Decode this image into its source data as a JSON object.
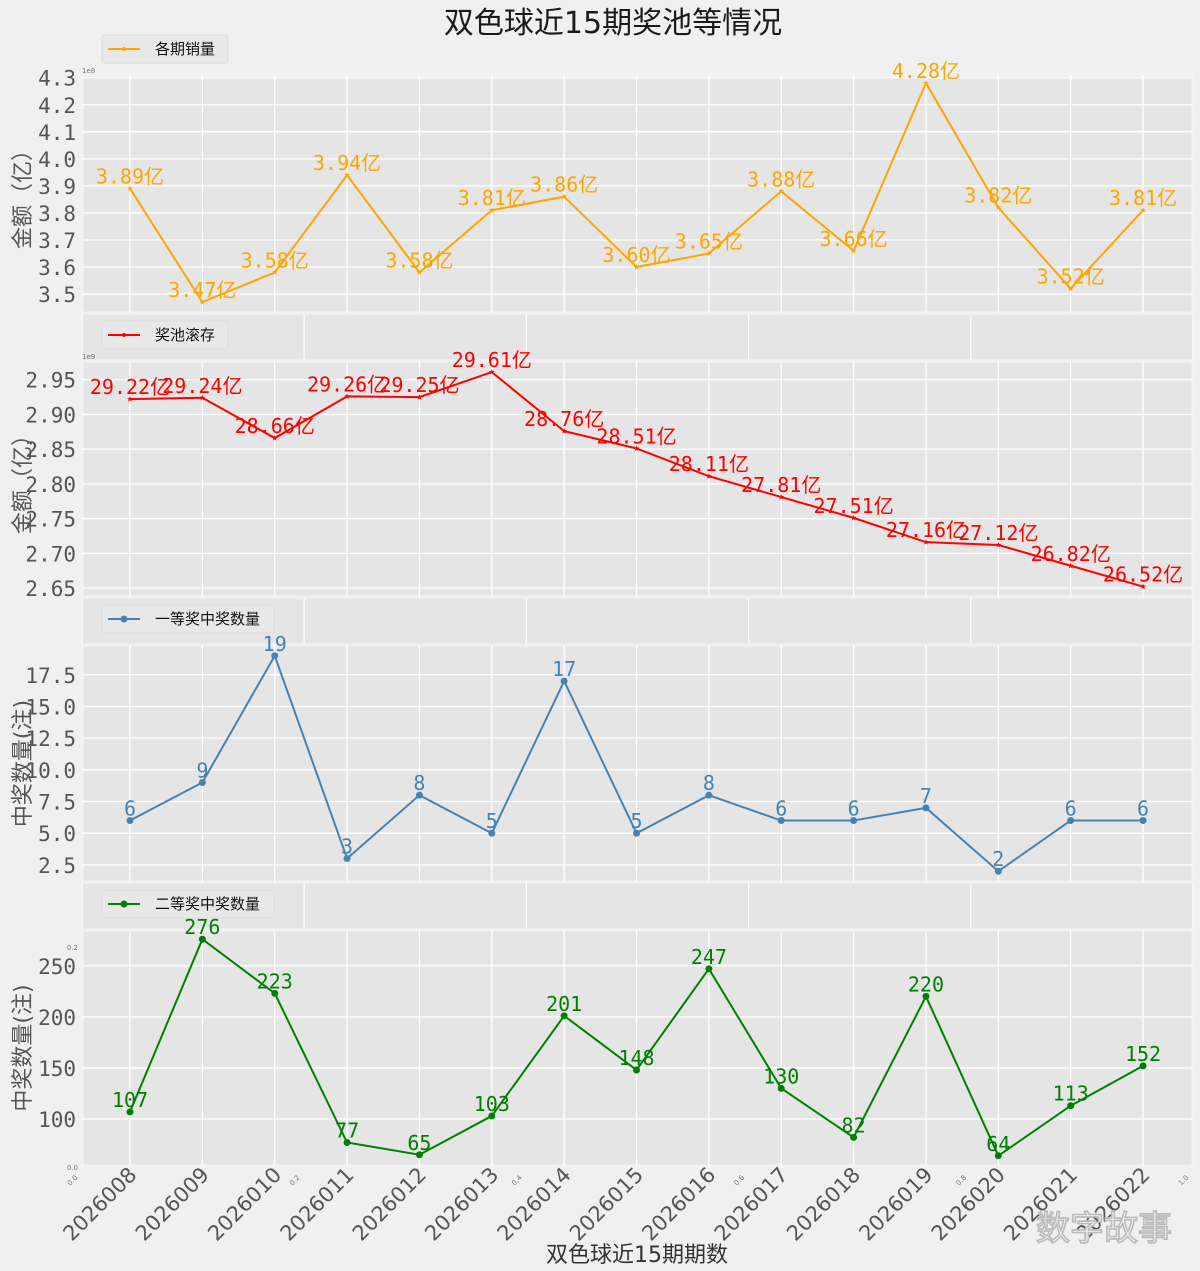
{
  "figure": {
    "title": "双色球近15期奖池等情况",
    "xlabel": "双色球近15期期数",
    "watermark": "数字故事",
    "background_axis_ticks": [
      "0.0",
      "0.2",
      "0.4",
      "0.6",
      "0.8",
      "1.0"
    ]
  },
  "chart_data": [
    {
      "type": "line",
      "name": "sales",
      "legend": "各期销量",
      "color": "#ffa500",
      "marker": "star",
      "ylabel": "金额（亿）",
      "offset_text": "1e8",
      "ylim": [
        3.43,
        4.31
      ],
      "yticks": [
        3.5,
        3.6,
        3.7,
        3.8,
        3.9,
        4.0,
        4.1,
        4.2,
        4.3
      ],
      "ytick_labels": [
        "3.5",
        "3.6",
        "3.7",
        "3.8",
        "3.9",
        "4.0",
        "4.1",
        "4.2",
        "4.3"
      ],
      "x": [
        "2026008",
        "2026009",
        "2026010",
        "2026011",
        "2026012",
        "2026013",
        "2026014",
        "2026015",
        "2026016",
        "2026017",
        "2026018",
        "2026019",
        "2026020",
        "2026021",
        "2026022"
      ],
      "values": [
        3.89,
        3.47,
        3.58,
        3.94,
        3.58,
        3.81,
        3.86,
        3.6,
        3.65,
        3.88,
        3.66,
        4.28,
        3.82,
        3.52,
        3.81
      ],
      "data_labels": [
        "3.89亿",
        "3.47亿",
        "3.58亿",
        "3.94亿",
        "3.58亿",
        "3.81亿",
        "3.86亿",
        "3.60亿",
        "3.65亿",
        "3.88亿",
        "3.66亿",
        "4.28亿",
        "3.82亿",
        "3.52亿",
        "3.81亿"
      ],
      "legend_position": "upper-left",
      "grid": true
    },
    {
      "type": "line",
      "name": "jackpot",
      "legend": "奖池滚存",
      "color": "#ff0000",
      "marker": "star",
      "ylabel": "金额（亿）",
      "offset_text": "1e9",
      "ylim": [
        2.637,
        2.977
      ],
      "yticks": [
        2.65,
        2.7,
        2.75,
        2.8,
        2.85,
        2.9,
        2.95
      ],
      "ytick_labels": [
        "2.65",
        "2.70",
        "2.75",
        "2.80",
        "2.85",
        "2.90",
        "2.95"
      ],
      "x": [
        "2026008",
        "2026009",
        "2026010",
        "2026011",
        "2026012",
        "2026013",
        "2026014",
        "2026015",
        "2026016",
        "2026017",
        "2026018",
        "2026019",
        "2026020",
        "2026021",
        "2026022"
      ],
      "values": [
        2.922,
        2.924,
        2.866,
        2.926,
        2.925,
        2.961,
        2.876,
        2.851,
        2.811,
        2.781,
        2.751,
        2.716,
        2.712,
        2.682,
        2.652
      ],
      "data_labels": [
        "29.22亿",
        "29.24亿",
        "28.66亿",
        "29.26亿",
        "29.25亿",
        "29.61亿",
        "28.76亿",
        "28.51亿",
        "28.11亿",
        "27.81亿",
        "27.51亿",
        "27.16亿",
        "27.12亿",
        "26.82亿",
        "26.52亿"
      ],
      "legend_position": "upper-left",
      "grid": true
    },
    {
      "type": "line",
      "name": "first-prize",
      "legend": "一等奖中奖数量",
      "color": "#4682b4",
      "marker": "circle",
      "ylabel": "中奖数量(注)",
      "ylim": [
        1.15,
        19.85
      ],
      "yticks": [
        2.5,
        5.0,
        7.5,
        10.0,
        12.5,
        15.0,
        17.5
      ],
      "ytick_labels": [
        "2.5",
        "5.0",
        "7.5",
        "10.0",
        "12.5",
        "15.0",
        "17.5"
      ],
      "x": [
        "2026008",
        "2026009",
        "2026010",
        "2026011",
        "2026012",
        "2026013",
        "2026014",
        "2026015",
        "2026016",
        "2026017",
        "2026018",
        "2026019",
        "2026020",
        "2026021",
        "2026022"
      ],
      "values": [
        6,
        9,
        19,
        3,
        8,
        5,
        17,
        5,
        8,
        6,
        6,
        7,
        2,
        6,
        6
      ],
      "data_labels": [
        "6",
        "9",
        "19",
        "3",
        "8",
        "5",
        "17",
        "5",
        "8",
        "6",
        "6",
        "7",
        "2",
        "6",
        "6"
      ],
      "legend_position": "upper-left",
      "grid": true
    },
    {
      "type": "line",
      "name": "second-prize",
      "legend": "二等奖中奖数量",
      "color": "#008000",
      "marker": "circle",
      "ylabel": "中奖数量(注)",
      "ylim": [
        54,
        285
      ],
      "yticks": [
        100,
        150,
        200,
        250
      ],
      "ytick_labels": [
        "100",
        "150",
        "200",
        "250"
      ],
      "x": [
        "2026008",
        "2026009",
        "2026010",
        "2026011",
        "2026012",
        "2026013",
        "2026014",
        "2026015",
        "2026016",
        "2026017",
        "2026018",
        "2026019",
        "2026020",
        "2026021",
        "2026022"
      ],
      "values": [
        107,
        276,
        223,
        77,
        65,
        103,
        201,
        148,
        247,
        130,
        82,
        220,
        64,
        113,
        152
      ],
      "data_labels": [
        "107",
        "276",
        "223",
        "77",
        "65",
        "103",
        "201",
        "148",
        "247",
        "130",
        "82",
        "220",
        "64",
        "113",
        "152"
      ],
      "legend_position": "upper-left",
      "grid": true
    }
  ]
}
